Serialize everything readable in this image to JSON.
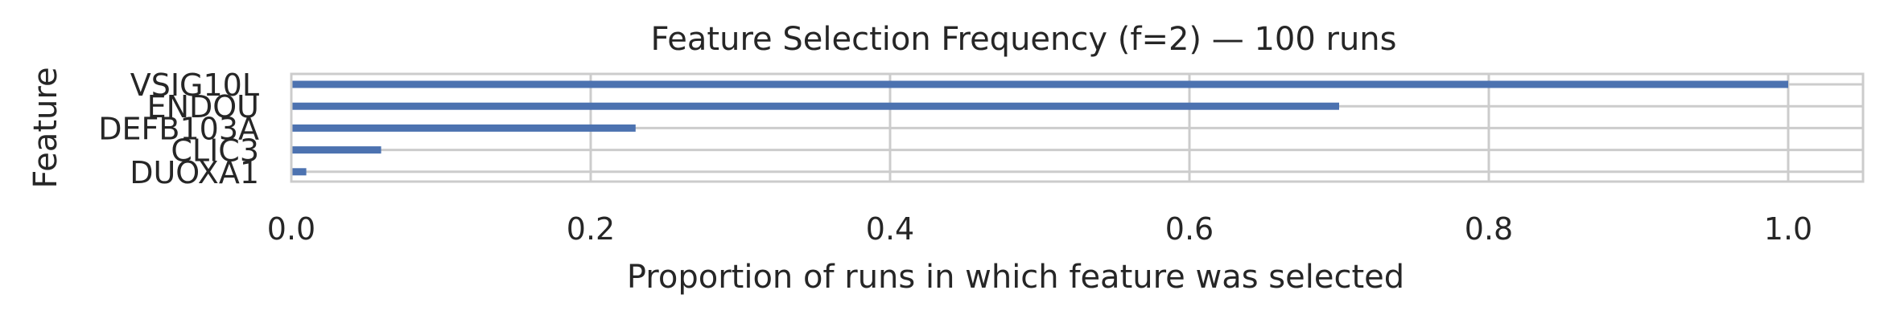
{
  "chart_data": {
    "type": "bar",
    "orientation": "horizontal",
    "title": "Feature Selection Frequency (f=2) — 100 runs",
    "xlabel": "Proportion of runs in which feature was selected",
    "ylabel": "Feature",
    "categories": [
      "VSIG10L",
      "ENDOU",
      "DEFB103A",
      "CLIC3",
      "DUOXA1"
    ],
    "values": [
      1.0,
      0.7,
      0.23,
      0.06,
      0.01
    ],
    "xlim": [
      0,
      1.05
    ],
    "xticks": [
      0.0,
      0.2,
      0.4,
      0.6,
      0.8,
      1.0
    ],
    "xtick_labels": [
      "0.0",
      "0.2",
      "0.4",
      "0.6",
      "0.8",
      "1.0"
    ],
    "grid": true,
    "bar_color": "#4c72b0",
    "grid_color": "#cccccc",
    "text_color": "#262626"
  }
}
